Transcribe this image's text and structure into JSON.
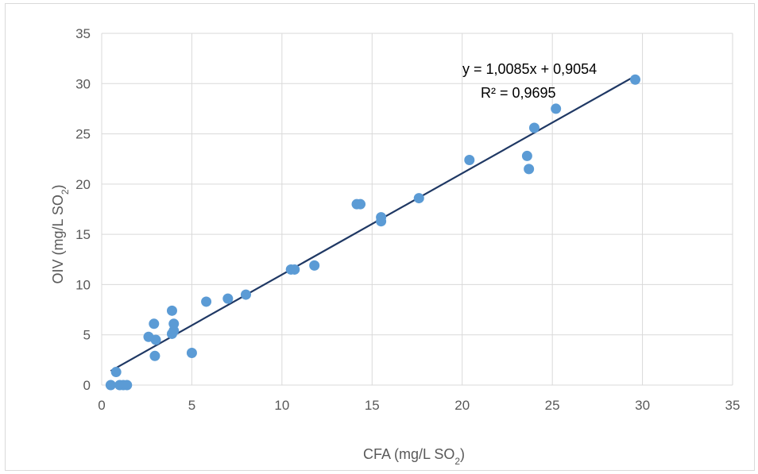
{
  "chart_data": {
    "type": "scatter",
    "xlabel": "CFA (mg/L SO",
    "xlabel_sub": "2",
    "xlabel_end": ")",
    "ylabel": "OIV (mg/L SO",
    "ylabel_sub": "2",
    "ylabel_end": ")",
    "xlim": [
      0,
      35
    ],
    "ylim": [
      0,
      35
    ],
    "xticks": [
      0,
      5,
      10,
      15,
      20,
      25,
      30,
      35
    ],
    "yticks": [
      0,
      5,
      10,
      15,
      20,
      25,
      30,
      35
    ],
    "grid": true,
    "legend": "none",
    "series": [
      {
        "color": "#5b9bd5",
        "points": [
          [
            0.5,
            0.0
          ],
          [
            0.8,
            1.3
          ],
          [
            1.0,
            0.0
          ],
          [
            1.2,
            0.0
          ],
          [
            1.4,
            0.0
          ],
          [
            2.6,
            4.8
          ],
          [
            2.9,
            6.1
          ],
          [
            3.0,
            4.5
          ],
          [
            2.95,
            2.9
          ],
          [
            3.9,
            7.4
          ],
          [
            3.9,
            5.1
          ],
          [
            4.0,
            5.4
          ],
          [
            4.0,
            6.1
          ],
          [
            5.0,
            3.2
          ],
          [
            5.8,
            8.3
          ],
          [
            7.0,
            8.6
          ],
          [
            8.0,
            9.0
          ],
          [
            10.5,
            11.5
          ],
          [
            10.7,
            11.5
          ],
          [
            11.8,
            11.9
          ],
          [
            14.15,
            18.0
          ],
          [
            14.35,
            18.0
          ],
          [
            15.5,
            16.7
          ],
          [
            15.5,
            16.3
          ],
          [
            17.6,
            18.6
          ],
          [
            20.4,
            22.4
          ],
          [
            23.6,
            22.8
          ],
          [
            23.7,
            21.5
          ],
          [
            24.0,
            25.6
          ],
          [
            25.2,
            27.5
          ],
          [
            29.6,
            30.4
          ]
        ]
      }
    ],
    "trendline": {
      "slope": 1.0085,
      "intercept": 0.9054,
      "x_range": [
        0.5,
        29.6
      ],
      "color": "#1f3864",
      "equation_label": "y = 1,0085x + 0,9054",
      "r2_label": "R² = 0,9695"
    }
  }
}
